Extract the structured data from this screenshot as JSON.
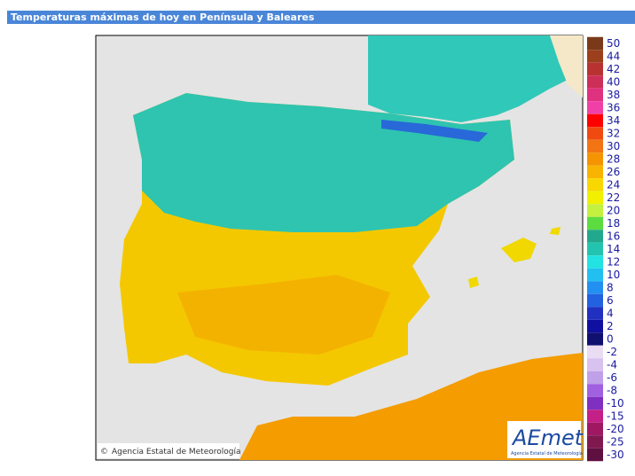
{
  "header": {
    "title": "Temperaturas máximas de hoy en Península y Baleares"
  },
  "map": {
    "credit": "Agencia Estatal de Meteorología",
    "logo": {
      "name": "AEmet",
      "subtitle": "Agencia Estatal de Meteorología"
    }
  },
  "legend": {
    "upper": [
      {
        "label": "50",
        "color": "#7a3a1a"
      },
      {
        "label": "44",
        "color": "#9c3f1c"
      },
      {
        "label": "42",
        "color": "#b83232"
      },
      {
        "label": "40",
        "color": "#cc2f58"
      },
      {
        "label": "38",
        "color": "#e03080"
      },
      {
        "label": "36",
        "color": "#f040a8"
      },
      {
        "label": "34",
        "color": "#ff0000"
      },
      {
        "label": "32",
        "color": "#f04a10"
      },
      {
        "label": "30",
        "color": "#f27412"
      },
      {
        "label": "28",
        "color": "#f49400"
      },
      {
        "label": "26",
        "color": "#f8b400"
      },
      {
        "label": "24",
        "color": "#f8d800"
      },
      {
        "label": "22",
        "color": "#f0f000"
      },
      {
        "label": "20",
        "color": "#c4f040"
      },
      {
        "label": "18",
        "color": "#5cdc40"
      },
      {
        "label": "16",
        "color": "#22a88c"
      },
      {
        "label": "14",
        "color": "#22c4b0"
      },
      {
        "label": "12",
        "color": "#22e2e2"
      },
      {
        "label": "10",
        "color": "#22c0f0"
      },
      {
        "label": "8",
        "color": "#2290f0"
      },
      {
        "label": "6",
        "color": "#2262e0"
      },
      {
        "label": "4",
        "color": "#2030c0"
      },
      {
        "label": "2",
        "color": "#1010a0"
      },
      {
        "label": "0",
        "color": "#101070"
      }
    ],
    "lower": [
      {
        "label": "-2",
        "color": "#eadcf2"
      },
      {
        "label": "-4",
        "color": "#d8c2f0"
      },
      {
        "label": "-6",
        "color": "#c0a0e8"
      },
      {
        "label": "-8",
        "color": "#a060e0"
      },
      {
        "label": "-10",
        "color": "#8030c0"
      },
      {
        "label": "-15",
        "color": "#c42088"
      },
      {
        "label": "-20",
        "color": "#a01862"
      },
      {
        "label": "-25",
        "color": "#801850"
      },
      {
        "label": "-30",
        "color": "#601040"
      }
    ]
  }
}
